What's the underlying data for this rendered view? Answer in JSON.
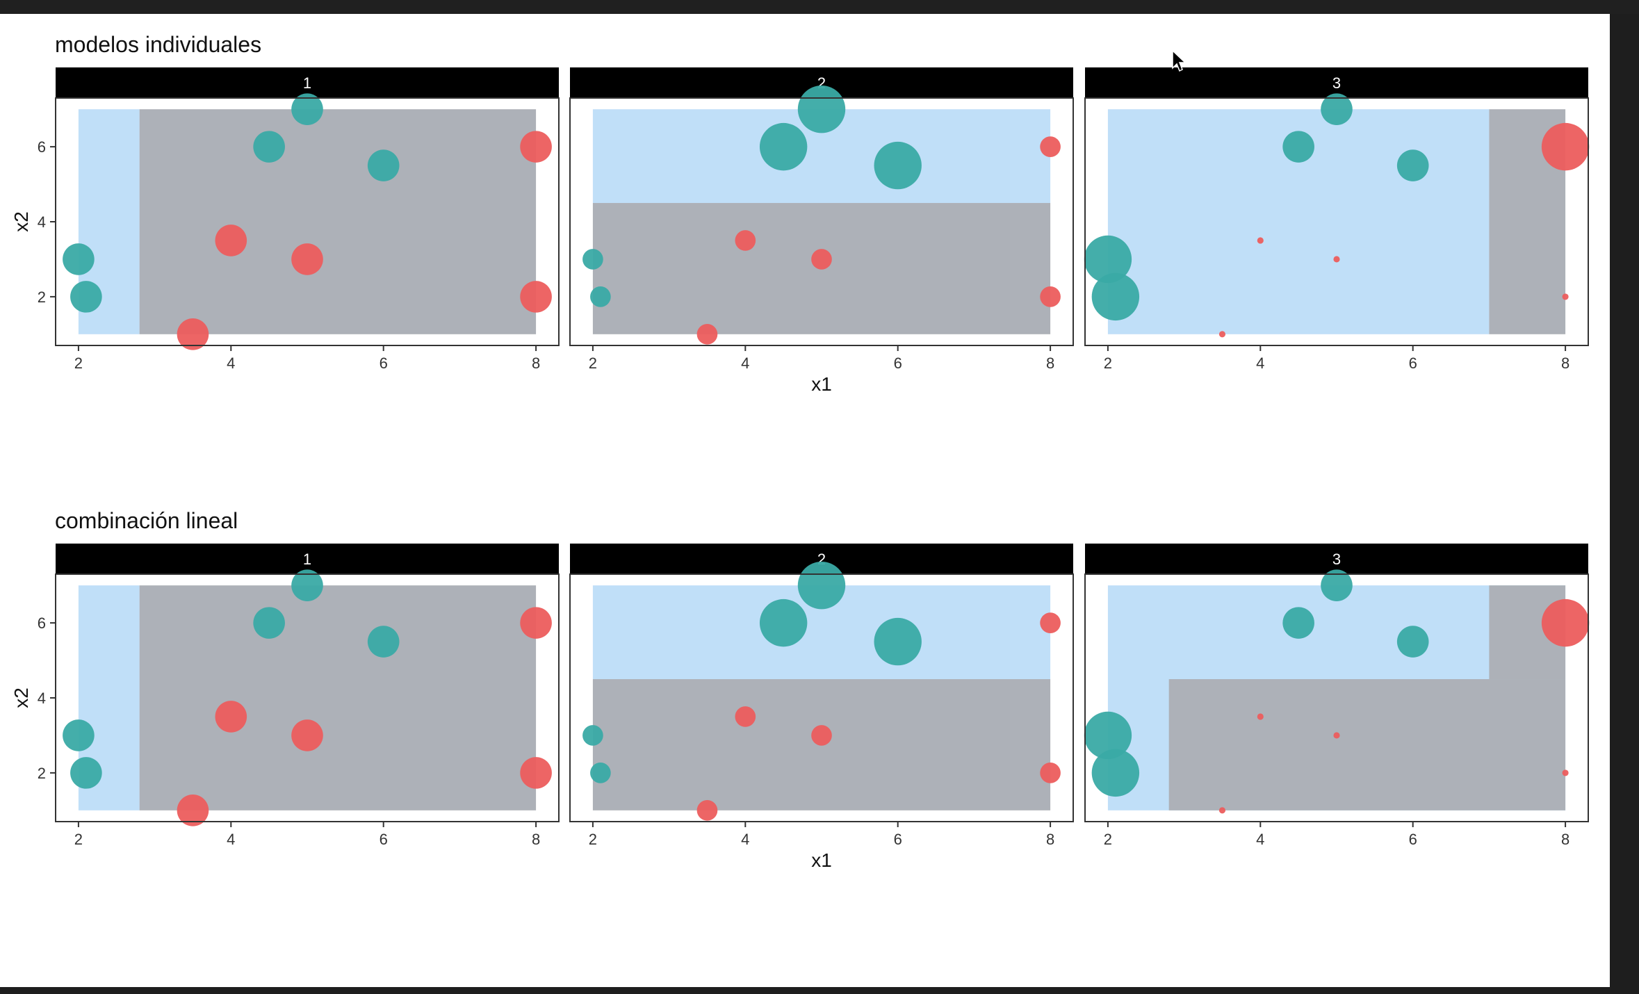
{
  "colors": {
    "strip": "#000000",
    "strip_text": "#ffffff",
    "region_blue": "#c0dff8",
    "region_grey": "#adb1b8",
    "teal": "#3aaaa5",
    "red": "#ec5d5d"
  },
  "icons": {
    "cursor": "mouse-pointer-icon"
  },
  "chart_data": [
    {
      "type": "scatter",
      "title": "modelos individuales",
      "xlabel": "x1",
      "ylabel": "x2",
      "xlim": [
        1.7,
        8.3
      ],
      "ylim": [
        0.7,
        7.3
      ],
      "x_ticks": [
        "2",
        "4",
        "6",
        "8"
      ],
      "y_ticks": [
        "2",
        "4",
        "6"
      ],
      "legend": "none",
      "grid": false,
      "facets": [
        {
          "label": "1",
          "regions": [
            {
              "fill": "blue",
              "x": [
                2,
                2.8
              ],
              "y": [
                1,
                7
              ]
            },
            {
              "fill": "grey",
              "x": [
                2.8,
                8
              ],
              "y": [
                1,
                7
              ]
            }
          ],
          "points": [
            {
              "x": 5,
              "y": 7,
              "cls": "teal",
              "size": 2
            },
            {
              "x": 4.5,
              "y": 6,
              "cls": "teal",
              "size": 2
            },
            {
              "x": 6,
              "y": 5.5,
              "cls": "teal",
              "size": 2
            },
            {
              "x": 2,
              "y": 3,
              "cls": "teal",
              "size": 2
            },
            {
              "x": 2.1,
              "y": 2,
              "cls": "teal",
              "size": 2
            },
            {
              "x": 8,
              "y": 6,
              "cls": "red",
              "size": 2
            },
            {
              "x": 4,
              "y": 3.5,
              "cls": "red",
              "size": 2
            },
            {
              "x": 5,
              "y": 3,
              "cls": "red",
              "size": 2
            },
            {
              "x": 8,
              "y": 2,
              "cls": "red",
              "size": 2
            },
            {
              "x": 3.5,
              "y": 1,
              "cls": "red",
              "size": 2
            }
          ]
        },
        {
          "label": "2",
          "regions": [
            {
              "fill": "blue",
              "x": [
                2,
                8
              ],
              "y": [
                4.5,
                7
              ]
            },
            {
              "fill": "grey",
              "x": [
                2,
                8
              ],
              "y": [
                1,
                4.5
              ]
            }
          ],
          "points": [
            {
              "x": 5,
              "y": 7,
              "cls": "teal",
              "size": 3
            },
            {
              "x": 4.5,
              "y": 6,
              "cls": "teal",
              "size": 3
            },
            {
              "x": 6,
              "y": 5.5,
              "cls": "teal",
              "size": 3
            },
            {
              "x": 2,
              "y": 3,
              "cls": "teal",
              "size": 1.3
            },
            {
              "x": 2.1,
              "y": 2,
              "cls": "teal",
              "size": 1.3
            },
            {
              "x": 8,
              "y": 6,
              "cls": "red",
              "size": 1.3
            },
            {
              "x": 4,
              "y": 3.5,
              "cls": "red",
              "size": 1.3
            },
            {
              "x": 5,
              "y": 3,
              "cls": "red",
              "size": 1.3
            },
            {
              "x": 8,
              "y": 2,
              "cls": "red",
              "size": 1.3
            },
            {
              "x": 3.5,
              "y": 1,
              "cls": "red",
              "size": 1.3
            }
          ]
        },
        {
          "label": "3",
          "regions": [
            {
              "fill": "blue",
              "x": [
                2,
                7
              ],
              "y": [
                1,
                7
              ]
            },
            {
              "fill": "grey",
              "x": [
                7,
                8
              ],
              "y": [
                1,
                7
              ]
            }
          ],
          "points": [
            {
              "x": 5,
              "y": 7,
              "cls": "teal",
              "size": 2
            },
            {
              "x": 4.5,
              "y": 6,
              "cls": "teal",
              "size": 2
            },
            {
              "x": 6,
              "y": 5.5,
              "cls": "teal",
              "size": 2
            },
            {
              "x": 2,
              "y": 3,
              "cls": "teal",
              "size": 3
            },
            {
              "x": 2.1,
              "y": 2,
              "cls": "teal",
              "size": 3
            },
            {
              "x": 8,
              "y": 6,
              "cls": "red",
              "size": 3
            },
            {
              "x": 4,
              "y": 3.5,
              "cls": "red",
              "size": 0.4
            },
            {
              "x": 5,
              "y": 3,
              "cls": "red",
              "size": 0.4
            },
            {
              "x": 8,
              "y": 2,
              "cls": "red",
              "size": 0.4
            },
            {
              "x": 3.5,
              "y": 1,
              "cls": "red",
              "size": 0.4
            }
          ]
        }
      ]
    },
    {
      "type": "scatter",
      "title": "combinación lineal",
      "xlabel": "x1",
      "ylabel": "x2",
      "xlim": [
        1.7,
        8.3
      ],
      "ylim": [
        0.7,
        7.3
      ],
      "x_ticks": [
        "2",
        "4",
        "6",
        "8"
      ],
      "y_ticks": [
        "2",
        "4",
        "6"
      ],
      "legend": "none",
      "grid": false,
      "facets": [
        {
          "label": "1",
          "regions": [
            {
              "fill": "blue",
              "x": [
                2,
                2.8
              ],
              "y": [
                1,
                7
              ]
            },
            {
              "fill": "grey",
              "x": [
                2.8,
                8
              ],
              "y": [
                1,
                7
              ]
            }
          ],
          "points": [
            {
              "x": 5,
              "y": 7,
              "cls": "teal",
              "size": 2
            },
            {
              "x": 4.5,
              "y": 6,
              "cls": "teal",
              "size": 2
            },
            {
              "x": 6,
              "y": 5.5,
              "cls": "teal",
              "size": 2
            },
            {
              "x": 2,
              "y": 3,
              "cls": "teal",
              "size": 2
            },
            {
              "x": 2.1,
              "y": 2,
              "cls": "teal",
              "size": 2
            },
            {
              "x": 8,
              "y": 6,
              "cls": "red",
              "size": 2
            },
            {
              "x": 4,
              "y": 3.5,
              "cls": "red",
              "size": 2
            },
            {
              "x": 5,
              "y": 3,
              "cls": "red",
              "size": 2
            },
            {
              "x": 8,
              "y": 2,
              "cls": "red",
              "size": 2
            },
            {
              "x": 3.5,
              "y": 1,
              "cls": "red",
              "size": 2
            }
          ]
        },
        {
          "label": "2",
          "regions": [
            {
              "fill": "blue",
              "x": [
                2,
                8
              ],
              "y": [
                4.5,
                7
              ]
            },
            {
              "fill": "grey",
              "x": [
                2,
                8
              ],
              "y": [
                1,
                4.5
              ]
            }
          ],
          "points": [
            {
              "x": 5,
              "y": 7,
              "cls": "teal",
              "size": 3
            },
            {
              "x": 4.5,
              "y": 6,
              "cls": "teal",
              "size": 3
            },
            {
              "x": 6,
              "y": 5.5,
              "cls": "teal",
              "size": 3
            },
            {
              "x": 2,
              "y": 3,
              "cls": "teal",
              "size": 1.3
            },
            {
              "x": 2.1,
              "y": 2,
              "cls": "teal",
              "size": 1.3
            },
            {
              "x": 8,
              "y": 6,
              "cls": "red",
              "size": 1.3
            },
            {
              "x": 4,
              "y": 3.5,
              "cls": "red",
              "size": 1.3
            },
            {
              "x": 5,
              "y": 3,
              "cls": "red",
              "size": 1.3
            },
            {
              "x": 8,
              "y": 2,
              "cls": "red",
              "size": 1.3
            },
            {
              "x": 3.5,
              "y": 1,
              "cls": "red",
              "size": 1.3
            }
          ]
        },
        {
          "label": "3",
          "regions": [
            {
              "fill": "blue",
              "x": [
                2,
                8
              ],
              "y": [
                1,
                7
              ]
            },
            {
              "fill": "grey",
              "x": [
                7,
                8
              ],
              "y": [
                4.5,
                7
              ]
            },
            {
              "fill": "grey",
              "x": [
                2.8,
                8
              ],
              "y": [
                1,
                4.5
              ]
            }
          ],
          "points": [
            {
              "x": 5,
              "y": 7,
              "cls": "teal",
              "size": 2
            },
            {
              "x": 4.5,
              "y": 6,
              "cls": "teal",
              "size": 2
            },
            {
              "x": 6,
              "y": 5.5,
              "cls": "teal",
              "size": 2
            },
            {
              "x": 2,
              "y": 3,
              "cls": "teal",
              "size": 3
            },
            {
              "x": 2.1,
              "y": 2,
              "cls": "teal",
              "size": 3
            },
            {
              "x": 8,
              "y": 6,
              "cls": "red",
              "size": 3
            },
            {
              "x": 4,
              "y": 3.5,
              "cls": "red",
              "size": 0.4
            },
            {
              "x": 5,
              "y": 3,
              "cls": "red",
              "size": 0.4
            },
            {
              "x": 8,
              "y": 2,
              "cls": "red",
              "size": 0.4
            },
            {
              "x": 3.5,
              "y": 1,
              "cls": "red",
              "size": 0.4
            }
          ]
        }
      ]
    }
  ]
}
